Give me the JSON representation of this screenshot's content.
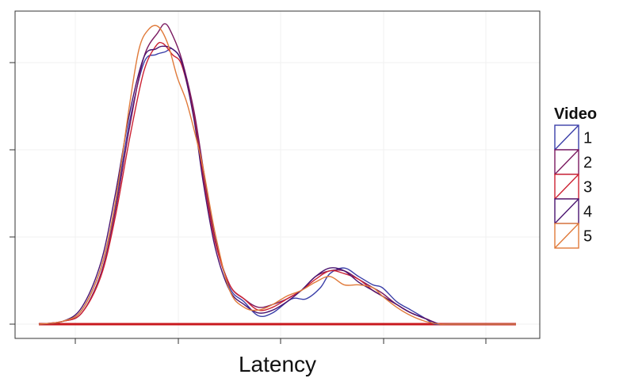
{
  "chart_data": {
    "type": "line",
    "title": "",
    "xlabel": "Latency",
    "ylabel": "",
    "x_ticks": 5,
    "y_ticks": 4,
    "grid": true,
    "legend": {
      "title": "Video",
      "placement": "right"
    },
    "ylim": [
      0,
      1.07
    ],
    "series": [
      {
        "name": "1",
        "color": "#3a3ea8",
        "points": [
          [
            0.0,
            0.0
          ],
          [
            0.05,
            0.01
          ],
          [
            0.09,
            0.05
          ],
          [
            0.13,
            0.2
          ],
          [
            0.16,
            0.42
          ],
          [
            0.19,
            0.72
          ],
          [
            0.22,
            0.93
          ],
          [
            0.245,
            0.96
          ],
          [
            0.265,
            0.97
          ],
          [
            0.28,
            0.98
          ],
          [
            0.3,
            0.93
          ],
          [
            0.325,
            0.75
          ],
          [
            0.345,
            0.54
          ],
          [
            0.37,
            0.3
          ],
          [
            0.4,
            0.13
          ],
          [
            0.43,
            0.08
          ],
          [
            0.46,
            0.03
          ],
          [
            0.49,
            0.04
          ],
          [
            0.53,
            0.09
          ],
          [
            0.56,
            0.09
          ],
          [
            0.59,
            0.13
          ],
          [
            0.61,
            0.18
          ],
          [
            0.64,
            0.2
          ],
          [
            0.67,
            0.17
          ],
          [
            0.7,
            0.14
          ],
          [
            0.72,
            0.13
          ],
          [
            0.75,
            0.08
          ],
          [
            0.78,
            0.05
          ],
          [
            0.81,
            0.02
          ],
          [
            0.83,
            0.0
          ],
          [
            0.86,
            0.0
          ],
          [
            1.0,
            0.0
          ]
        ]
      },
      {
        "name": "2",
        "color": "#7a1a60",
        "points": [
          [
            0.0,
            0.0
          ],
          [
            0.05,
            0.01
          ],
          [
            0.09,
            0.04
          ],
          [
            0.13,
            0.18
          ],
          [
            0.16,
            0.4
          ],
          [
            0.19,
            0.7
          ],
          [
            0.22,
            0.95
          ],
          [
            0.25,
            1.04
          ],
          [
            0.265,
            1.07
          ],
          [
            0.28,
            1.03
          ],
          [
            0.3,
            0.94
          ],
          [
            0.325,
            0.76
          ],
          [
            0.345,
            0.55
          ],
          [
            0.37,
            0.3
          ],
          [
            0.4,
            0.14
          ],
          [
            0.43,
            0.09
          ],
          [
            0.46,
            0.06
          ],
          [
            0.49,
            0.07
          ],
          [
            0.52,
            0.09
          ],
          [
            0.55,
            0.12
          ],
          [
            0.58,
            0.17
          ],
          [
            0.61,
            0.19
          ],
          [
            0.64,
            0.19
          ],
          [
            0.67,
            0.16
          ],
          [
            0.7,
            0.13
          ],
          [
            0.72,
            0.11
          ],
          [
            0.75,
            0.07
          ],
          [
            0.78,
            0.04
          ],
          [
            0.81,
            0.02
          ],
          [
            0.84,
            0.0
          ],
          [
            0.86,
            0.0
          ],
          [
            1.0,
            0.0
          ]
        ]
      },
      {
        "name": "3",
        "color": "#cc2233",
        "points": [
          [
            0.0,
            0.0
          ],
          [
            0.05,
            0.01
          ],
          [
            0.09,
            0.04
          ],
          [
            0.13,
            0.17
          ],
          [
            0.16,
            0.38
          ],
          [
            0.19,
            0.66
          ],
          [
            0.22,
            0.9
          ],
          [
            0.245,
            0.99
          ],
          [
            0.26,
            1.0
          ],
          [
            0.28,
            0.96
          ],
          [
            0.3,
            0.92
          ],
          [
            0.325,
            0.74
          ],
          [
            0.345,
            0.52
          ],
          [
            0.37,
            0.29
          ],
          [
            0.4,
            0.14
          ],
          [
            0.43,
            0.09
          ],
          [
            0.46,
            0.05
          ],
          [
            0.49,
            0.06
          ],
          [
            0.52,
            0.09
          ],
          [
            0.55,
            0.12
          ],
          [
            0.58,
            0.16
          ],
          [
            0.61,
            0.19
          ],
          [
            0.64,
            0.18
          ],
          [
            0.67,
            0.16
          ],
          [
            0.7,
            0.12
          ],
          [
            0.72,
            0.1
          ],
          [
            0.75,
            0.07
          ],
          [
            0.78,
            0.04
          ],
          [
            0.81,
            0.02
          ],
          [
            0.84,
            0.0
          ],
          [
            0.86,
            0.0
          ],
          [
            1.0,
            0.0
          ]
        ]
      },
      {
        "name": "4",
        "color": "#4a1470",
        "points": [
          [
            0.0,
            0.0
          ],
          [
            0.05,
            0.01
          ],
          [
            0.09,
            0.06
          ],
          [
            0.13,
            0.22
          ],
          [
            0.16,
            0.46
          ],
          [
            0.19,
            0.75
          ],
          [
            0.22,
            0.95
          ],
          [
            0.245,
            0.98
          ],
          [
            0.26,
            0.99
          ],
          [
            0.28,
            0.98
          ],
          [
            0.3,
            0.93
          ],
          [
            0.325,
            0.73
          ],
          [
            0.345,
            0.5
          ],
          [
            0.37,
            0.27
          ],
          [
            0.4,
            0.12
          ],
          [
            0.43,
            0.07
          ],
          [
            0.46,
            0.04
          ],
          [
            0.49,
            0.05
          ],
          [
            0.52,
            0.08
          ],
          [
            0.55,
            0.12
          ],
          [
            0.58,
            0.17
          ],
          [
            0.61,
            0.2
          ],
          [
            0.64,
            0.19
          ],
          [
            0.67,
            0.15
          ],
          [
            0.7,
            0.12
          ],
          [
            0.72,
            0.1
          ],
          [
            0.75,
            0.07
          ],
          [
            0.78,
            0.04
          ],
          [
            0.81,
            0.02
          ],
          [
            0.84,
            0.0
          ],
          [
            0.86,
            0.0
          ],
          [
            1.0,
            0.0
          ]
        ]
      },
      {
        "name": "5",
        "color": "#e07a3a",
        "points": [
          [
            0.0,
            0.0
          ],
          [
            0.05,
            0.01
          ],
          [
            0.09,
            0.05
          ],
          [
            0.13,
            0.2
          ],
          [
            0.16,
            0.43
          ],
          [
            0.19,
            0.78
          ],
          [
            0.21,
            0.98
          ],
          [
            0.23,
            1.05
          ],
          [
            0.25,
            1.06
          ],
          [
            0.27,
            1.0
          ],
          [
            0.29,
            0.88
          ],
          [
            0.31,
            0.79
          ],
          [
            0.33,
            0.66
          ],
          [
            0.345,
            0.55
          ],
          [
            0.37,
            0.32
          ],
          [
            0.4,
            0.12
          ],
          [
            0.43,
            0.06
          ],
          [
            0.46,
            0.05
          ],
          [
            0.49,
            0.07
          ],
          [
            0.52,
            0.1
          ],
          [
            0.55,
            0.12
          ],
          [
            0.58,
            0.15
          ],
          [
            0.61,
            0.17
          ],
          [
            0.64,
            0.14
          ],
          [
            0.67,
            0.14
          ],
          [
            0.7,
            0.13
          ],
          [
            0.72,
            0.1
          ],
          [
            0.75,
            0.06
          ],
          [
            0.78,
            0.03
          ],
          [
            0.81,
            0.01
          ],
          [
            0.84,
            0.0
          ],
          [
            0.86,
            0.0
          ],
          [
            1.0,
            0.0
          ]
        ]
      }
    ]
  }
}
